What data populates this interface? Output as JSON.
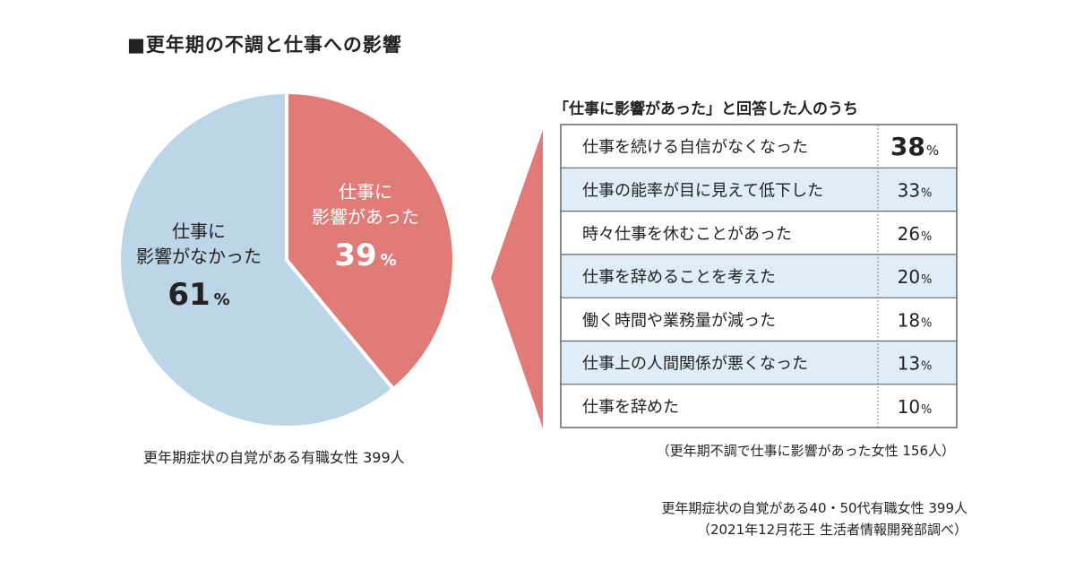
{
  "title": "■更年期の不調と仕事への影響",
  "colors": {
    "not_affected": "#bcd6e8",
    "affected": "#e07b77",
    "alt_row": "#deedf8",
    "border": "#666666"
  },
  "chart_data": [
    {
      "type": "pie",
      "slices": [
        {
          "label_lines": [
            "仕事に",
            "影響があった"
          ],
          "value": 39,
          "unit": "%",
          "color": "#e07b77"
        },
        {
          "label_lines": [
            "仕事に",
            "影響がなかった"
          ],
          "value": 61,
          "unit": "%",
          "color": "#bcd6e8"
        }
      ],
      "note": "更年期症状の自覚がある有職女性 399人"
    },
    {
      "type": "table",
      "title": "「仕事に影響があった」と回答した人のうち",
      "unit": "%",
      "rows": [
        {
          "label": "仕事を続ける自信がなくなった",
          "value": 38
        },
        {
          "label": "仕事の能率が目に見えて低下した",
          "value": 33
        },
        {
          "label": "時々仕事を休むことがあった",
          "value": 26
        },
        {
          "label": "仕事を辞めることを考えた",
          "value": 20
        },
        {
          "label": "働く時間や業務量が減った",
          "value": 18
        },
        {
          "label": "仕事上の人間関係が悪くなった",
          "value": 13
        },
        {
          "label": "仕事を辞めた",
          "value": 10
        }
      ],
      "note": "（更年期不調で仕事に影響があった女性 156人）"
    }
  ],
  "source": {
    "line1": "更年期症状の自覚がある40・50代有職女性 399人",
    "line2": "（2021年12月花王 生活者情報開発部調べ）"
  }
}
